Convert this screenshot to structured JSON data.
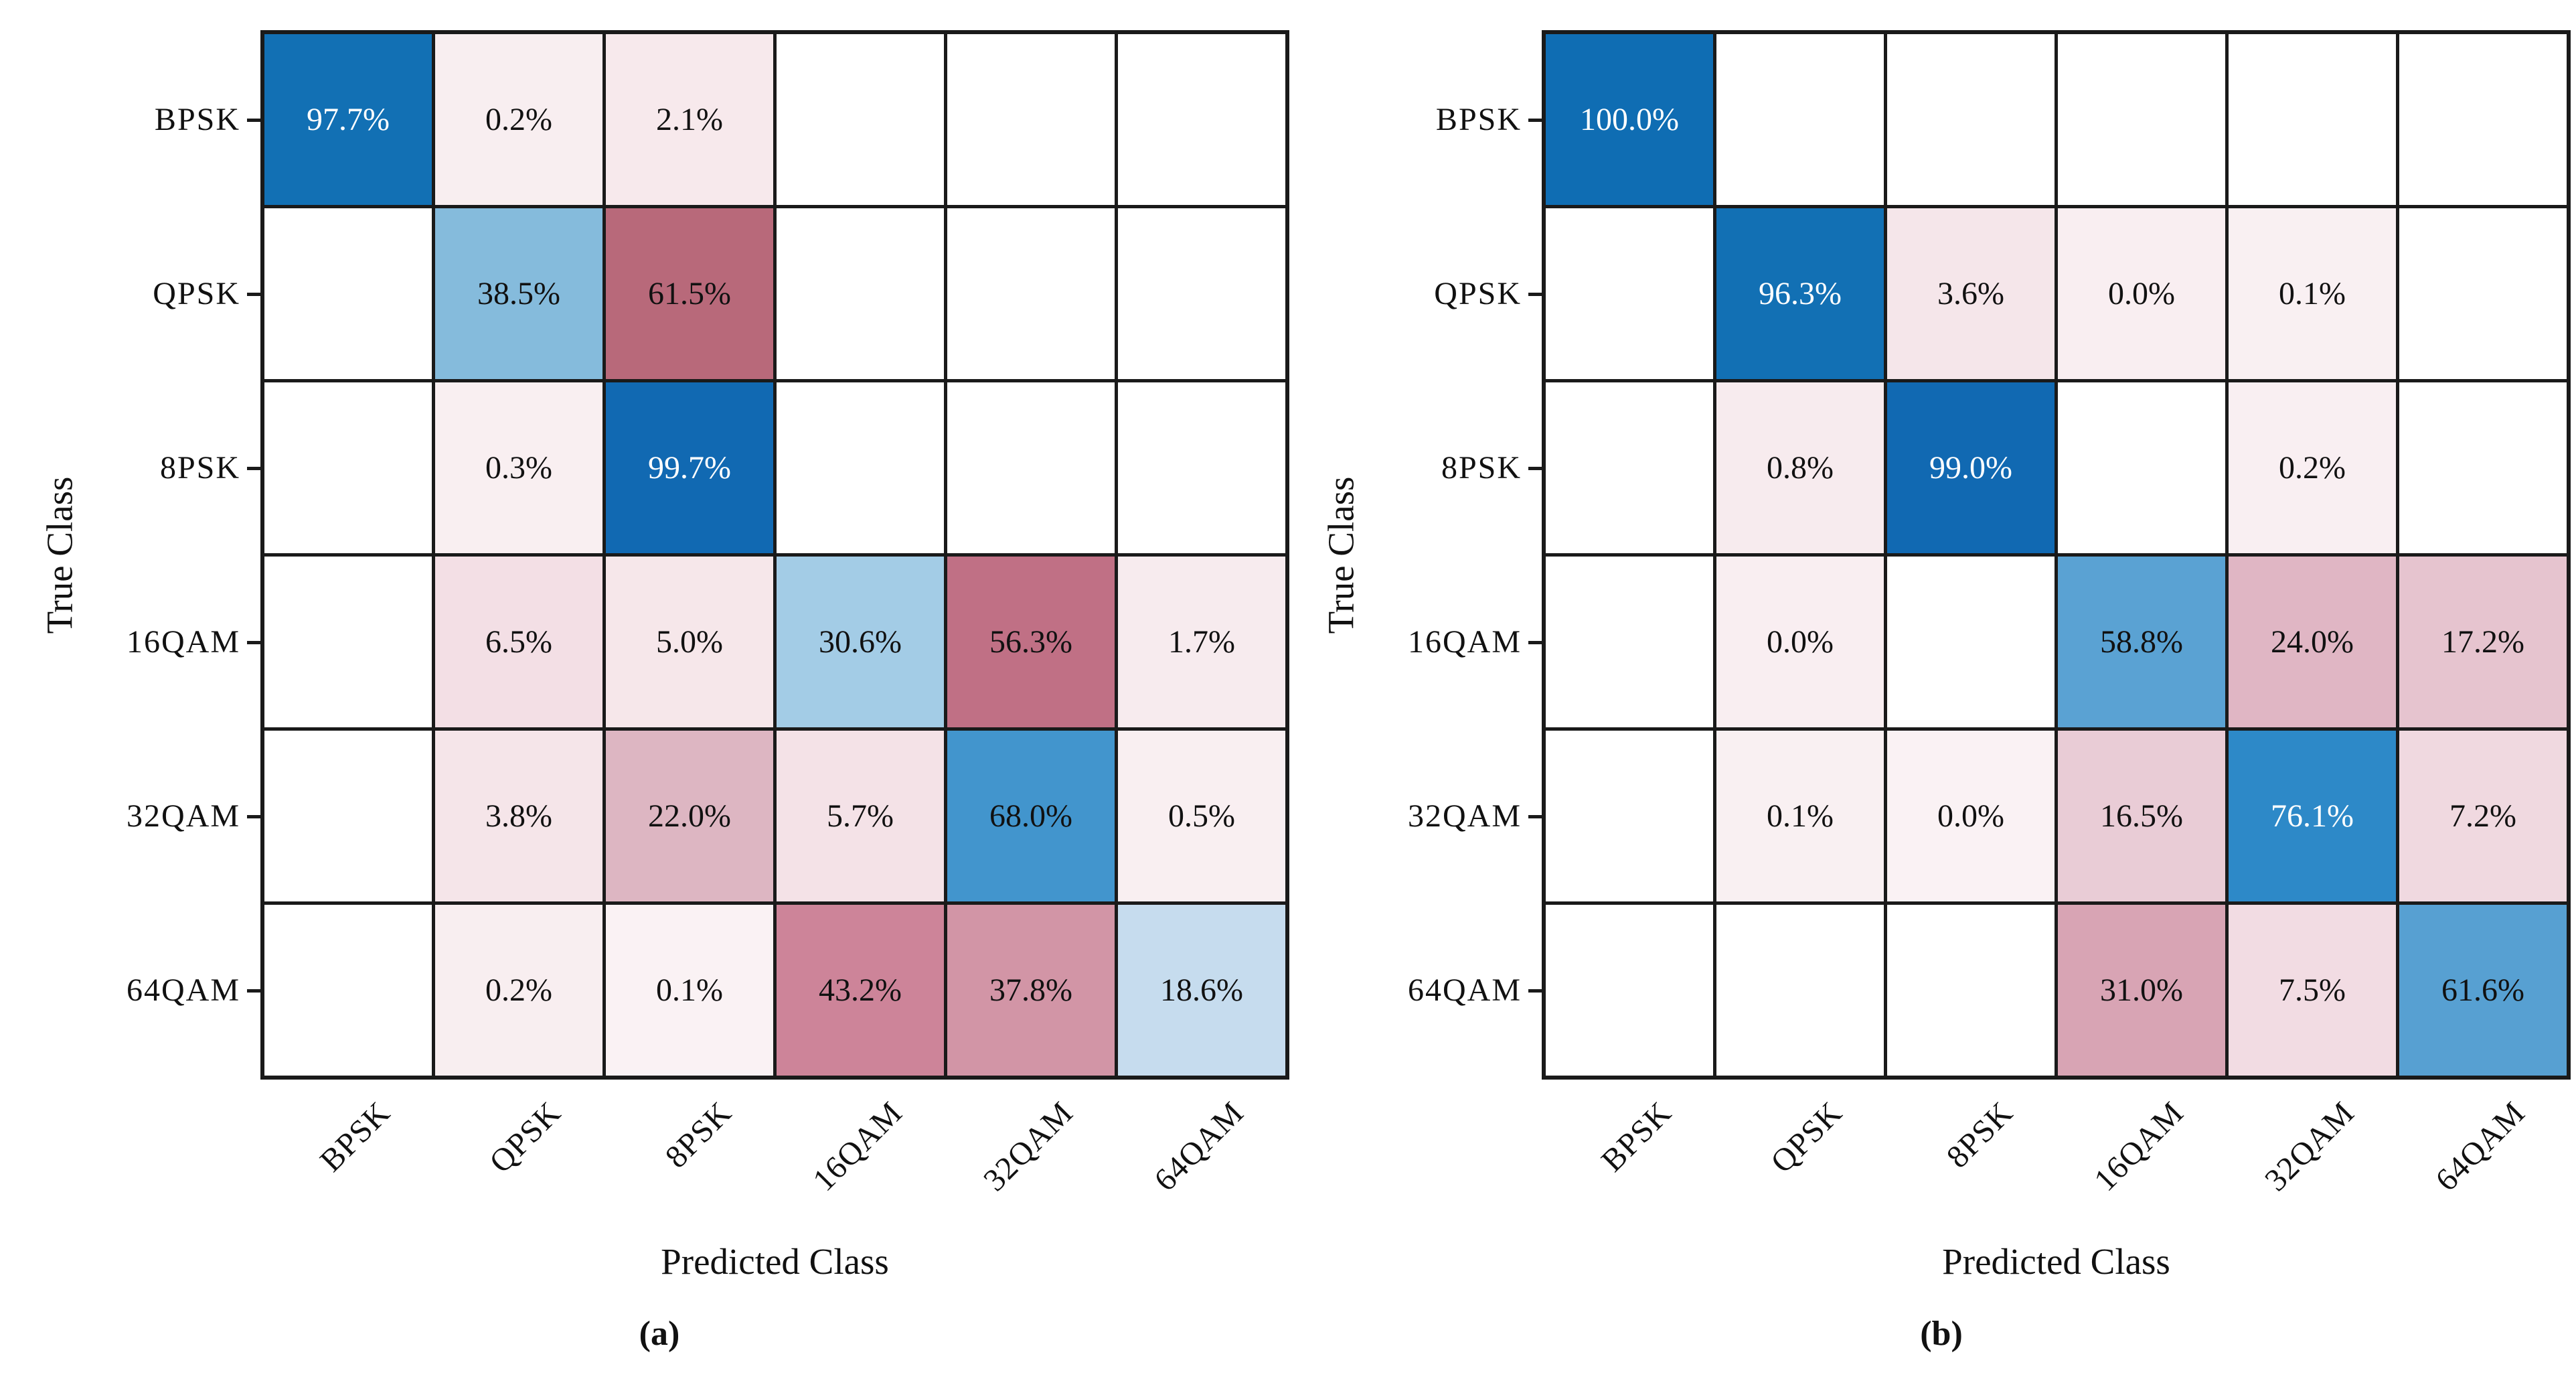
{
  "figure": {
    "background": "#ffffff",
    "grid_line_color": "#1a1a1a",
    "cell_text_color": "#111111",
    "cell_text_color_on_dark": "#ffffff",
    "white_text_min_percent": 70,
    "diagonal_accent_color": "#1270b4",
    "offdiagonal_accent_color": "#b8697a"
  },
  "chart_data": [
    {
      "id": "a",
      "type": "heatmap",
      "subtype": "confusion-matrix",
      "caption": "(a)",
      "xlabel": "Predicted Class",
      "ylabel": "True Class",
      "x_categories": [
        "BPSK",
        "QPSK",
        "8PSK",
        "16QAM",
        "32QAM",
        "64QAM"
      ],
      "y_categories": [
        "BPSK",
        "QPSK",
        "8PSK",
        "16QAM",
        "32QAM",
        "64QAM"
      ],
      "values_percent": [
        [
          97.7,
          0.2,
          2.1,
          null,
          null,
          null
        ],
        [
          null,
          38.5,
          61.5,
          null,
          null,
          null
        ],
        [
          null,
          0.3,
          99.7,
          null,
          null,
          null
        ],
        [
          null,
          6.5,
          5.0,
          30.6,
          56.3,
          1.7
        ],
        [
          null,
          3.8,
          22.0,
          5.7,
          68.0,
          0.5
        ],
        [
          null,
          0.2,
          0.1,
          43.2,
          37.8,
          18.6
        ]
      ],
      "cell_text": [
        [
          "97.7%",
          "0.2%",
          "2.1%",
          "",
          "",
          ""
        ],
        [
          "",
          "38.5%",
          "61.5%",
          "",
          "",
          ""
        ],
        [
          "",
          "0.3%",
          "99.7%",
          "",
          "",
          ""
        ],
        [
          "",
          "6.5%",
          "5.0%",
          "30.6%",
          "56.3%",
          "1.7%"
        ],
        [
          "",
          "3.8%",
          "22.0%",
          "5.7%",
          "68.0%",
          "0.5%"
        ],
        [
          "",
          "0.2%",
          "0.1%",
          "43.2%",
          "37.8%",
          "18.6%"
        ]
      ],
      "cell_colors": [
        [
          "#1270b4",
          "#f8eef0",
          "#f7e9ec",
          "",
          "",
          ""
        ],
        [
          "",
          "#85bbdc",
          "#b8697a",
          "",
          "",
          ""
        ],
        [
          "",
          "#f9eff1",
          "#1169b2",
          "",
          "",
          ""
        ],
        [
          "",
          "#f3dfe5",
          "#f6e7ea",
          "#a3cce6",
          "#c07085",
          "#f7ebee"
        ],
        [
          "",
          "#f5e5e9",
          "#ddb6c2",
          "#f4e2e7",
          "#4295cd",
          "#f9eff1"
        ],
        [
          "",
          "#f8eef0",
          "#faf2f4",
          "#cd8499",
          "#d295a6",
          "#c6dcee"
        ]
      ],
      "white_text_cells": [
        [
          0,
          0
        ],
        [
          2,
          2
        ]
      ],
      "legend": "none",
      "grid": "on"
    },
    {
      "id": "b",
      "type": "heatmap",
      "subtype": "confusion-matrix",
      "caption": "(b)",
      "xlabel": "Predicted Class",
      "ylabel": "True Class",
      "x_categories": [
        "BPSK",
        "QPSK",
        "8PSK",
        "16QAM",
        "32QAM",
        "64QAM"
      ],
      "y_categories": [
        "BPSK",
        "QPSK",
        "8PSK",
        "16QAM",
        "32QAM",
        "64QAM"
      ],
      "values_percent": [
        [
          100.0,
          null,
          null,
          null,
          null,
          null
        ],
        [
          null,
          96.3,
          3.6,
          0.0,
          0.1,
          null
        ],
        [
          null,
          0.8,
          99.0,
          null,
          0.2,
          null
        ],
        [
          null,
          0.0,
          null,
          58.8,
          24.0,
          17.2
        ],
        [
          null,
          0.1,
          0.0,
          16.5,
          76.1,
          7.2
        ],
        [
          null,
          null,
          null,
          31.0,
          7.5,
          61.6
        ]
      ],
      "cell_text": [
        [
          "100.0%",
          "",
          "",
          "",
          "",
          ""
        ],
        [
          "",
          "96.3%",
          "3.6%",
          "0.0%",
          "0.1%",
          ""
        ],
        [
          "",
          "0.8%",
          "99.0%",
          "",
          "0.2%",
          ""
        ],
        [
          "",
          "0.0%",
          "",
          "58.8%",
          "24.0%",
          "17.2%"
        ],
        [
          "",
          "0.1%",
          "0.0%",
          "16.5%",
          "76.1%",
          "7.2%"
        ],
        [
          "",
          "",
          "",
          "31.0%",
          "7.5%",
          "61.6%"
        ]
      ],
      "cell_colors": [
        [
          "#0f6db3",
          "",
          "",
          "",
          "",
          ""
        ],
        [
          "",
          "#1270b4",
          "#f5e6ea",
          "#f9eef1",
          "#f9f0f2",
          ""
        ],
        [
          "",
          "#f7ebee",
          "#1169b2",
          "",
          "#f9eff2",
          ""
        ],
        [
          "",
          "#f9eef1",
          "",
          "#5aa2d3",
          "#e0b6c4",
          "#e6c4cf"
        ],
        [
          "",
          "#f9f0f2",
          "#faf2f4",
          "#e9ccd6",
          "#2d89c8",
          "#f0d9e0"
        ],
        [
          "",
          "",
          "",
          "#d8a4b4",
          "#f2dce3",
          "#57a0d2"
        ]
      ],
      "white_text_cells": [
        [
          0,
          0
        ],
        [
          1,
          1
        ],
        [
          2,
          2
        ],
        [
          4,
          4
        ]
      ],
      "legend": "none",
      "grid": "on"
    }
  ]
}
